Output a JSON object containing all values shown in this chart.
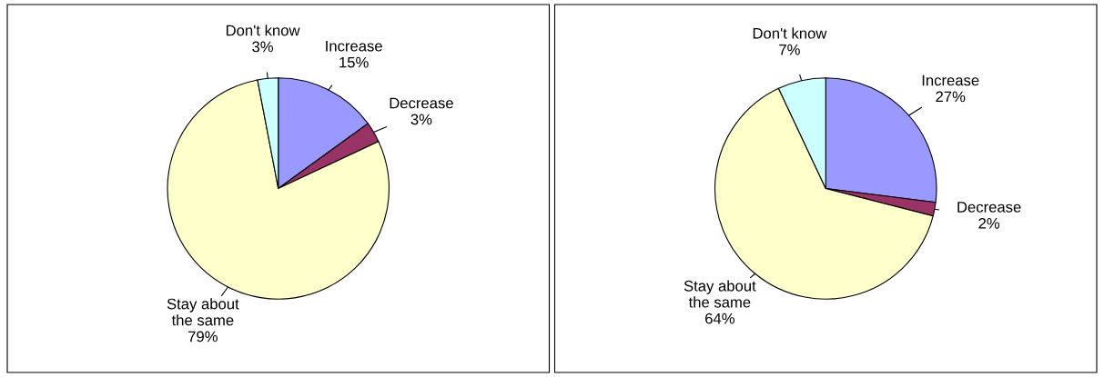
{
  "chart_data": [
    {
      "type": "pie",
      "categories": [
        "Increase",
        "Decrease",
        "Stay about the same",
        "Don't know"
      ],
      "values": [
        15,
        3,
        79,
        3
      ],
      "colors": [
        "#9999ff",
        "#993366",
        "#ffffcc",
        "#ccffff"
      ],
      "value_labels": [
        "15%",
        "3%",
        "79%",
        "3%"
      ]
    },
    {
      "type": "pie",
      "categories": [
        "Increase",
        "Decrease",
        "Stay about the same",
        "Don't know"
      ],
      "values": [
        27,
        2,
        64,
        7
      ],
      "colors": [
        "#9999ff",
        "#993366",
        "#ffffcc",
        "#ccffff"
      ],
      "value_labels": [
        "27%",
        "2%",
        "64%",
        "7%"
      ]
    }
  ]
}
